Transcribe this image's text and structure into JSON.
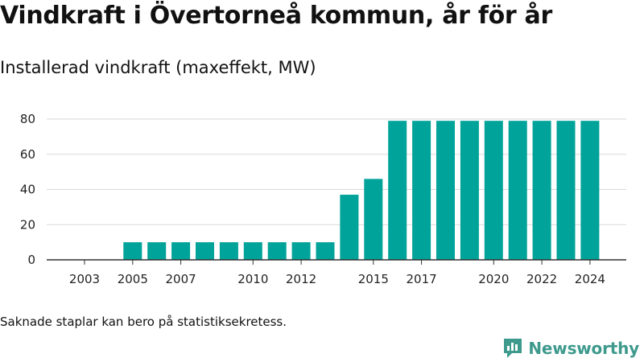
{
  "title": "Vindkraft i Övertorneå kommun, år för år",
  "subtitle": "Installerad vindkraft (maxeffekt, MW)",
  "footnote": "Saknade staplar kan bero på statistiksekretess.",
  "brand": {
    "name": "Newsworthy",
    "icon": "newsworthy-logo-icon",
    "color": "#3d9a8c"
  },
  "colors": {
    "bar": "#00a39a",
    "grid": "#d9d9d9",
    "axis": "#333333"
  },
  "chart_data": {
    "type": "bar",
    "title": "Vindkraft i Övertorneå kommun, år för år",
    "subtitle": "Installerad vindkraft (maxeffekt, MW)",
    "xlabel": "",
    "ylabel": "",
    "ylim": [
      0,
      80
    ],
    "yticks": [
      0,
      20,
      40,
      60,
      80
    ],
    "grid": true,
    "legend": "none",
    "categories": [
      "2003",
      "2004",
      "2005",
      "2006",
      "2007",
      "2008",
      "2009",
      "2010",
      "2011",
      "2012",
      "2013",
      "2014",
      "2015",
      "2016",
      "2017",
      "2018",
      "2019",
      "2020",
      "2021",
      "2022",
      "2023",
      "2024"
    ],
    "xtick_labels": [
      "2003",
      "2005",
      "2007",
      "2010",
      "2012",
      "2015",
      "2017",
      "2020",
      "2022",
      "2024"
    ],
    "values": [
      null,
      null,
      10,
      10,
      10,
      10,
      10,
      10,
      10,
      10,
      10,
      37,
      46,
      79,
      79,
      79,
      79,
      79,
      79,
      79,
      79,
      79
    ]
  }
}
